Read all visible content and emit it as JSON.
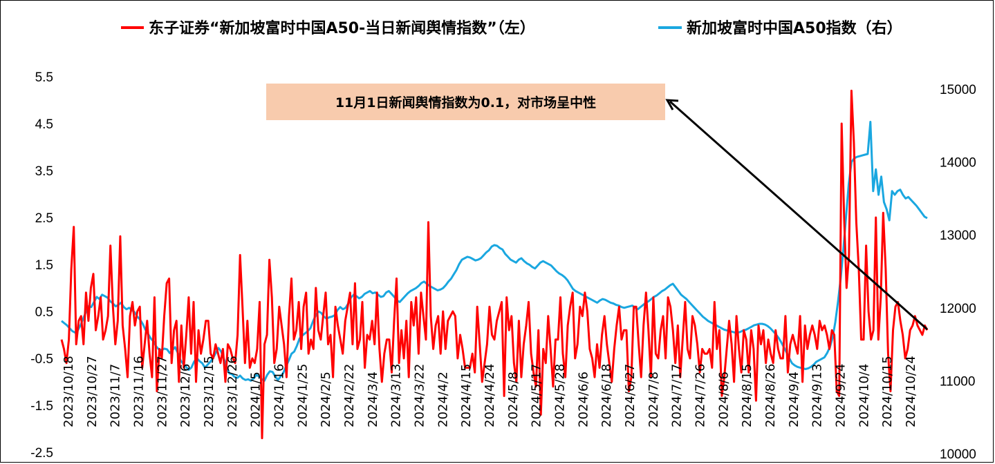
{
  "chart_data": {
    "type": "line",
    "title": "",
    "legend": {
      "placement": "top",
      "entries": [
        {
          "label": "东子证券“新加坡富时中国A50-当日新闻舆情指数”（左）",
          "color": "#ff0000"
        },
        {
          "label": "新加坡富时中国A50指数（右）",
          "color": "#1aa7e0"
        }
      ]
    },
    "annotation": "11月1日新闻舆情指数为0.1，对市场呈中性",
    "x_tick_labels": [
      "2023/10/18",
      "2023/10/27",
      "2023/11/7",
      "2023/11/16",
      "2023/11/27",
      "2023/12/6",
      "2023/12/15",
      "2023/12/26",
      "2024/1/5",
      "2024/1/16",
      "2024/1/25",
      "2024/2/5",
      "2024/2/22",
      "2024/3/4",
      "2024/3/13",
      "2024/3/22",
      "2024/4/2",
      "2024/4/15",
      "2024/4/24",
      "2024/5/8",
      "2024/5/17",
      "2024/5/28",
      "2024/6/6",
      "2024/6/18",
      "2024/6/27",
      "2024/7/8",
      "2024/7/17",
      "2024/7/26",
      "2024/8/6",
      "2024/8/15",
      "2024/8/26",
      "2024/9/4",
      "2024/9/13",
      "2024/9/24",
      "2024/10/4",
      "2024/10/15",
      "2024/10/24"
    ],
    "y_left": {
      "ticks": [
        "-2.5",
        "-1.5",
        "-0.5",
        "0.5",
        "1.5",
        "2.5",
        "3.5",
        "4.5",
        "5.5"
      ],
      "range": [
        -2.5,
        5.5
      ]
    },
    "y_right": {
      "ticks": [
        "10000",
        "11000",
        "12000",
        "13000",
        "14000",
        "15000"
      ],
      "range": [
        10000,
        15000
      ]
    },
    "grid": false,
    "series": [
      {
        "name": "东子证券“新加坡富时中国A50-当日新闻舆情指数”（左）",
        "axis": "left",
        "color": "#ff0000",
        "values": [
          -0.1,
          -0.3,
          -0.6,
          -0.1,
          1.4,
          2.3,
          -0.2,
          0.3,
          0.4,
          -0.2,
          0.9,
          0.3,
          1.0,
          1.3,
          0.1,
          0.4,
          0.8,
          -0.1,
          0.1,
          0.4,
          1.9,
          0.6,
          -0.2,
          0.3,
          2.1,
          0.2,
          -0.3,
          -0.9,
          0.4,
          0.7,
          0.2,
          0.5,
          0.6,
          -0.7,
          -0.2,
          0.3,
          -0.4,
          -0.9,
          0.8,
          -1.2,
          -0.3,
          -0.5,
          0.4,
          1.1,
          1.2,
          -0.6,
          0.1,
          0.3,
          -1.0,
          0.2,
          -0.7,
          0.0,
          0.8,
          -0.4,
          0.7,
          -1.0,
          0.1,
          -0.4,
          -0.1,
          0.3,
          0.3,
          -0.4,
          -0.5,
          -0.2,
          -0.4,
          -0.6,
          -0.3,
          -1.0,
          -0.2,
          -0.3,
          -0.5,
          -0.6,
          0.0,
          1.7,
          0.6,
          -0.6,
          0.3,
          -0.7,
          -0.5,
          -0.6,
          -0.3,
          0.7,
          -2.2,
          -0.2,
          0.0,
          1.6,
          0.8,
          -0.6,
          -0.3,
          0.6,
          0.2,
          -0.2,
          -0.9,
          0.4,
          1.2,
          -0.1,
          0.1,
          0.7,
          -0.3,
          0.6,
          0.9,
          -0.4,
          -0.1,
          -0.3,
          1.0,
          0.1,
          -0.1,
          0.4,
          0.9,
          -0.2,
          0.0,
          -0.9,
          0.6,
          0.2,
          -0.1,
          -0.4,
          0.3,
          0.6,
          0.9,
          -0.2,
          1.1,
          -0.3,
          -0.1,
          0.7,
          -0.7,
          0.0,
          -0.1,
          0.3,
          -0.2,
          0.9,
          -0.3,
          -1.0,
          -0.4,
          -0.1,
          -0.1,
          -0.8,
          0.3,
          1.2,
          -0.6,
          0.1,
          -0.5,
          0.3,
          -0.9,
          0.7,
          0.2,
          0.8,
          -0.4,
          0.9,
          0.4,
          -0.1,
          2.4,
          0.4,
          -0.3,
          0.2,
          0.4,
          -0.4,
          0.5,
          -0.3,
          0.3,
          0.4,
          0.5,
          0.4,
          -0.5,
          0.0,
          -0.3,
          -0.7,
          -0.7,
          -0.7,
          -0.4,
          -0.8,
          0.6,
          -0.2,
          -1.0,
          -0.6,
          -0.2,
          0.6,
          0.0,
          -0.1,
          0.3,
          0.5,
          0.7,
          -1.3,
          0.8,
          0.1,
          0.4,
          -0.6,
          -1.0,
          0.3,
          -0.9,
          -0.2,
          0.2,
          0.7,
          -0.4,
          -0.8,
          -1.1,
          0.1,
          -1.7,
          -0.3,
          -0.6,
          0.4,
          -0.3,
          -1.1,
          -0.1,
          -0.1,
          0.8,
          -0.4,
          -0.9,
          0.2,
          0.6,
          0.9,
          -0.5,
          -0.2,
          0.6,
          0.4,
          0.9,
          0.5,
          -0.3,
          -0.5,
          -0.9,
          -0.2,
          -0.7,
          0.0,
          0.4,
          -0.2,
          -0.6,
          -1.0,
          -0.3,
          0.2,
          0.6,
          -0.1,
          0.1,
          0.1,
          -1.2,
          -0.9,
          0.6,
          0.6,
          -0.2,
          -0.9,
          0.2,
          0.9,
          0.1,
          -0.9,
          0.8,
          -0.4,
          -0.5,
          0.1,
          0.4,
          -0.5,
          0.8,
          0.6,
          0.1,
          -0.6,
          0.2,
          -0.9,
          -0.1,
          0.7,
          -0.3,
          -0.5,
          0.4,
          0.2,
          -0.2,
          -0.8,
          -0.3,
          -0.4,
          -0.4,
          -0.3,
          -0.7,
          0.7,
          -0.3,
          0.1,
          -1.3,
          -0.9,
          -0.3,
          0.3,
          -0.2,
          -1.0,
          0.4,
          -0.3,
          -0.8,
          0.1,
          -0.1,
          -0.8,
          0.1,
          -0.3,
          -1.4,
          0.2,
          -0.2,
          0.1,
          -0.6,
          -0.1,
          -0.4,
          -0.6,
          0.1,
          -0.3,
          -0.5,
          -0.5,
          0.4,
          -0.8,
          -0.2,
          0.0,
          -0.2,
          -0.4,
          0.4,
          -1.0,
          0.2,
          -0.3,
          0.0,
          0.2,
          0.0,
          -0.3,
          0.3,
          0.1,
          0.2,
          0.0,
          -0.3,
          0.1,
          0.0,
          -1.2,
          -1.3,
          4.5,
          2.5,
          1.0,
          1.7,
          5.2,
          4.1,
          2.4,
          1.4,
          -0.1,
          -0.1,
          1.9,
          0.5,
          -0.1,
          0.1,
          2.5,
          -0.1,
          0.8,
          2.6,
          1.4,
          -0.4,
          -1.2,
          0.1,
          0.6,
          0.7,
          0.3,
          0.0,
          -0.5,
          -0.3,
          0.1,
          0.2,
          0.4,
          0.2,
          0.1,
          0.0,
          0.2,
          0.1
        ]
      },
      {
        "name": "新加坡富时中国A50指数（右）",
        "axis": "right",
        "color": "#1aa7e0",
        "values": [
          11820,
          11790,
          11760,
          11720,
          11680,
          11660,
          11690,
          11760,
          11850,
          11940,
          12020,
          12010,
          12080,
          12150,
          12120,
          12180,
          12160,
          12140,
          12090,
          12060,
          12020,
          12040,
          12070,
          12010,
          11980,
          12000,
          11970,
          11940,
          11880,
          11840,
          11780,
          11700,
          11640,
          11580,
          11540,
          11470,
          11430,
          11420,
          11440,
          11430,
          11380,
          11420,
          11460,
          11380,
          11280,
          11230,
          11190,
          11150,
          11180,
          11260,
          11310,
          11270,
          11240,
          11180,
          11220,
          11260,
          11310,
          11380,
          11450,
          11400,
          11300,
          11190,
          11100,
          11090,
          11050,
          11040,
          11070,
          11030,
          11010,
          11020,
          11000,
          11030,
          11080,
          11060,
          11020,
          11000,
          11080,
          11130,
          11120,
          11060,
          11010,
          11060,
          11110,
          11200,
          11280,
          11370,
          11400,
          11480,
          11580,
          11620,
          11650,
          11680,
          11720,
          11820,
          11900,
          11950,
          11930,
          11880,
          11850,
          11870,
          11880,
          11900,
          11970,
          12010,
          11980,
          12000,
          12060,
          12140,
          12180,
          12160,
          12130,
          12150,
          12190,
          12210,
          12230,
          12200,
          12210,
          12180,
          12150,
          12160,
          12210,
          12230,
          12190,
          12150,
          12100,
          12080,
          12120,
          12160,
          12200,
          12230,
          12250,
          12270,
          12300,
          12340,
          12360,
          12330,
          12300,
          12280,
          12260,
          12240,
          12250,
          12270,
          12310,
          12360,
          12400,
          12460,
          12520,
          12600,
          12660,
          12680,
          12700,
          12690,
          12670,
          12650,
          12660,
          12680,
          12720,
          12760,
          12790,
          12840,
          12860,
          12850,
          12820,
          12800,
          12740,
          12700,
          12660,
          12640,
          12620,
          12660,
          12680,
          12640,
          12610,
          12590,
          12560,
          12540,
          12580,
          12620,
          12640,
          12620,
          12600,
          12580,
          12540,
          12500,
          12470,
          12450,
          12420,
          12380,
          12320,
          12260,
          12230,
          12210,
          12190,
          12170,
          12150,
          12130,
          12110,
          12090,
          12070,
          12100,
          12120,
          12110,
          12090,
          12070,
          12060,
          12040,
          12030,
          12010,
          12000,
          12010,
          12020,
          12030,
          12000,
          11980,
          12010,
          12040,
          12070,
          12090,
          12120,
          12150,
          12170,
          12200,
          12230,
          12250,
          12280,
          12310,
          12330,
          12280,
          12230,
          12180,
          12150,
          12120,
          12080,
          12040,
          12000,
          11960,
          11920,
          11880,
          11850,
          11820,
          11800,
          11780,
          11760,
          11740,
          11720,
          11700,
          11690,
          11680,
          11670,
          11660,
          11660,
          11670,
          11690,
          11700,
          11720,
          11740,
          11760,
          11770,
          11780,
          11780,
          11770,
          11750,
          11720,
          11680,
          11640,
          11590,
          11530,
          11460,
          11390,
          11310,
          11240,
          11210,
          11190,
          11180,
          11170,
          11160,
          11170,
          11190,
          11220,
          11260,
          11280,
          11300,
          11320,
          11380,
          11460,
          11590,
          11800,
          12080,
          12400,
          12800,
          13250,
          13700,
          14000,
          14050,
          14070,
          14080,
          14090,
          14100,
          14110,
          14550,
          13600,
          13900,
          13550,
          13800,
          13450,
          13350,
          13200,
          13600,
          13550,
          13600,
          13620,
          13550,
          13500,
          13520,
          13480,
          13440,
          13400,
          13350,
          13300,
          13250,
          13230
        ]
      }
    ]
  }
}
